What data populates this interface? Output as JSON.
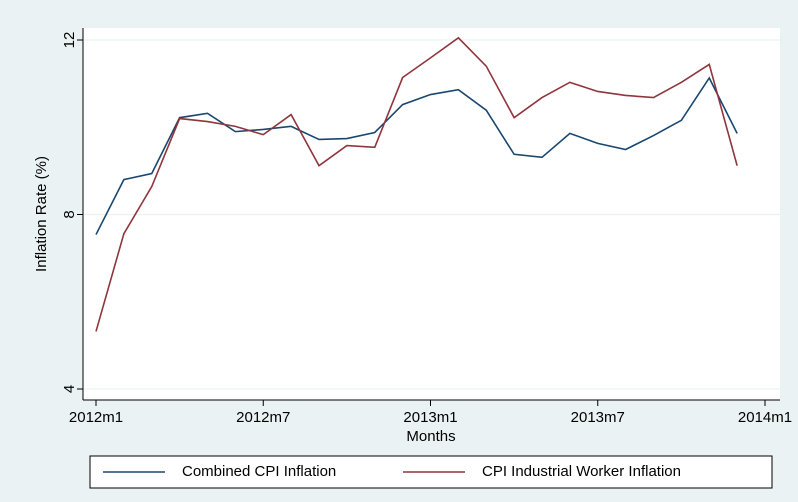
{
  "chart_data": {
    "type": "line",
    "x_label": "Months",
    "y_label": "Inflation Rate (%)",
    "x": [
      624,
      625,
      626,
      627,
      628,
      629,
      630,
      631,
      632,
      633,
      634,
      635,
      636,
      637,
      638,
      639,
      640,
      641,
      642,
      643,
      644,
      645,
      646,
      647
    ],
    "xlim": [
      624,
      648
    ],
    "xticks": [
      {
        "value": 624,
        "label": "2012m1"
      },
      {
        "value": 630,
        "label": "2012m7"
      },
      {
        "value": 636,
        "label": "2013m1"
      },
      {
        "value": 642,
        "label": "2013m7"
      },
      {
        "value": 648,
        "label": "2014m1"
      }
    ],
    "ylim": [
      4,
      12
    ],
    "yticks": [
      4,
      8,
      12
    ],
    "grid": true,
    "series": [
      {
        "name": "Combined CPI Inflation",
        "color": "#1a476f",
        "values": [
          7.54,
          8.8,
          8.94,
          10.22,
          10.32,
          9.9,
          9.95,
          10.02,
          9.72,
          9.74,
          9.88,
          10.52,
          10.75,
          10.86,
          10.39,
          9.38,
          9.31,
          9.86,
          9.63,
          9.49,
          9.81,
          10.16,
          11.13,
          9.86
        ]
      },
      {
        "name": "CPI Industrial Worker  Inflation",
        "color": "#90353b",
        "values": [
          5.32,
          7.56,
          8.64,
          10.2,
          10.13,
          10.02,
          9.83,
          10.29,
          9.12,
          9.58,
          9.54,
          11.14,
          11.59,
          12.05,
          11.4,
          10.22,
          10.68,
          11.03,
          10.82,
          10.73,
          10.68,
          11.03,
          11.44,
          9.12
        ]
      }
    ]
  }
}
